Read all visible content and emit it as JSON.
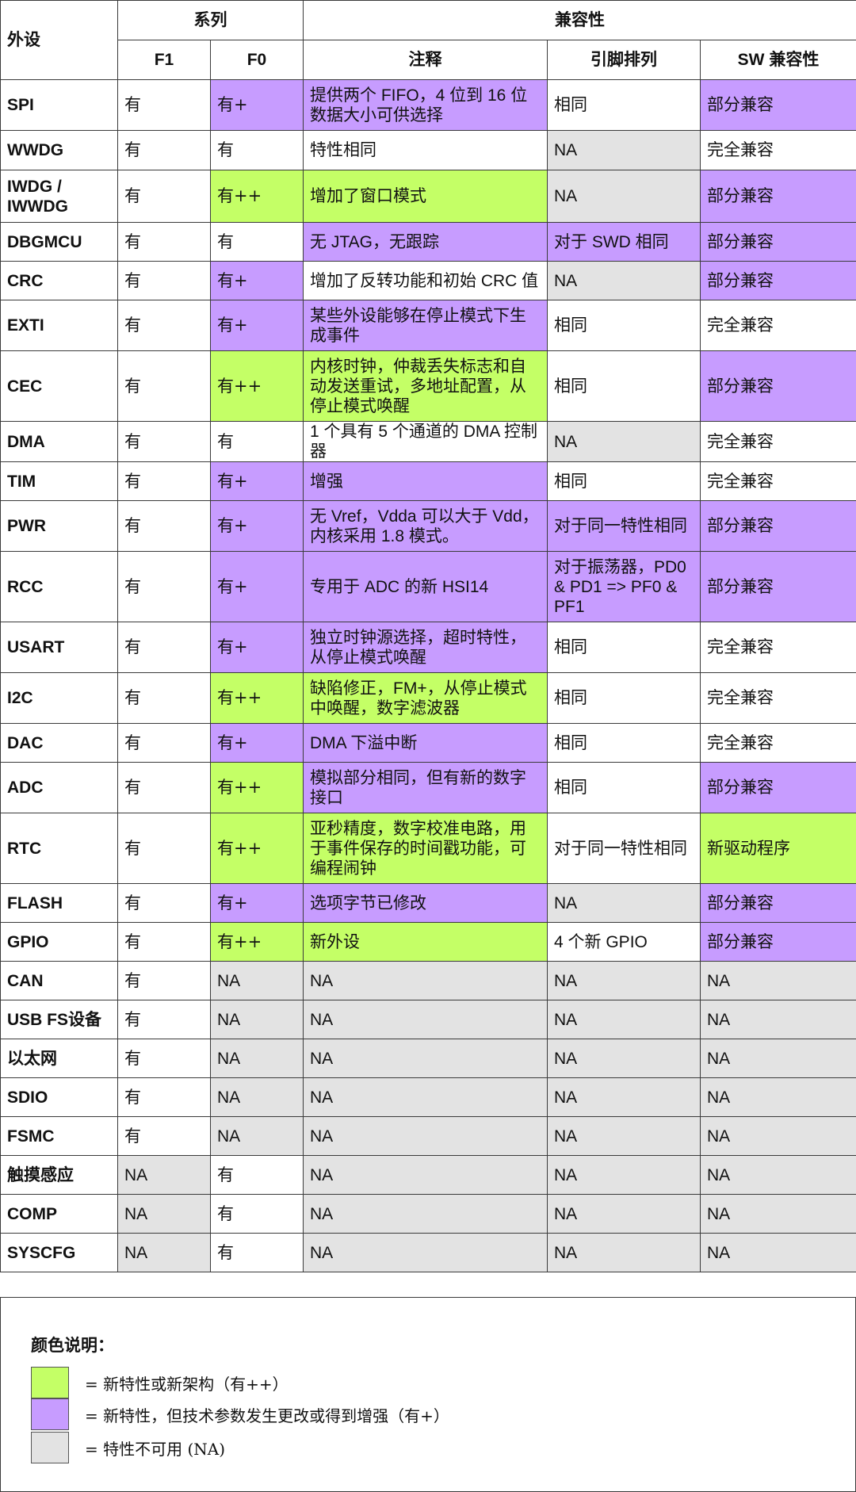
{
  "header": {
    "peripheral": "外设",
    "series": "系列",
    "compat": "兼容性",
    "f1": "F1",
    "f0": "F0",
    "note": "注释",
    "pin": "引脚排列",
    "sw": "SW 兼容性"
  },
  "rows": [
    {
      "name": "SPI",
      "f1": "有",
      "f1c": "w",
      "f0": "有+",
      "f0c": "p",
      "note": "提供两个 FIFO，4 位到 16 位数据大小可供选择",
      "notec": "p",
      "pin": "相同",
      "pinc": "w",
      "sw": "部分兼容",
      "swc": "p"
    },
    {
      "name": "WWDG",
      "f1": "有",
      "f1c": "w",
      "f0": "有",
      "f0c": "w",
      "note": "特性相同",
      "notec": "w",
      "pin": "NA",
      "pinc": "n",
      "sw": "完全兼容",
      "swc": "w"
    },
    {
      "name": "IWDG / IWWDG",
      "f1": "有",
      "f1c": "w",
      "f0": "有++",
      "f0c": "g",
      "note": "增加了窗口模式",
      "notec": "g",
      "pin": "NA",
      "pinc": "n",
      "sw": "部分兼容",
      "swc": "p"
    },
    {
      "name": "DBGMCU",
      "f1": "有",
      "f1c": "w",
      "f0": "有",
      "f0c": "w",
      "note": "无 JTAG，无跟踪",
      "notec": "p",
      "pin": "对于 SWD 相同",
      "pinc": "p",
      "sw": "部分兼容",
      "swc": "p"
    },
    {
      "name": "CRC",
      "f1": "有",
      "f1c": "w",
      "f0": "有+",
      "f0c": "p",
      "note": "增加了反转功能和初始 CRC 值",
      "notec": "w",
      "pin": "NA",
      "pinc": "n",
      "sw": "部分兼容",
      "swc": "p"
    },
    {
      "name": "EXTI",
      "f1": "有",
      "f1c": "w",
      "f0": "有+",
      "f0c": "p",
      "note": "某些外设能够在停止模式下生成事件",
      "notec": "p",
      "pin": "相同",
      "pinc": "w",
      "sw": "完全兼容",
      "swc": "w"
    },
    {
      "name": "CEC",
      "f1": "有",
      "f1c": "w",
      "f0": "有++",
      "f0c": "g",
      "note": "内核时钟，仲裁丢失标志和自动发送重试，多地址配置，从停止模式唤醒",
      "notec": "g",
      "pin": "相同",
      "pinc": "w",
      "sw": "部分兼容",
      "swc": "p"
    },
    {
      "name": "DMA",
      "f1": "有",
      "f1c": "w",
      "f0": "有",
      "f0c": "w",
      "note": "1 个具有 5 个通道的 DMA 控制器",
      "notec": "w",
      "pin": "NA",
      "pinc": "n",
      "sw": "完全兼容",
      "swc": "w"
    },
    {
      "name": "TIM",
      "f1": "有",
      "f1c": "w",
      "f0": "有+",
      "f0c": "p",
      "note": "增强",
      "notec": "p",
      "pin": "相同",
      "pinc": "w",
      "sw": "完全兼容",
      "swc": "w"
    },
    {
      "name": "PWR",
      "f1": "有",
      "f1c": "w",
      "f0": "有+",
      "f0c": "p",
      "note": "无 Vref，Vdda 可以大于 Vdd，内核采用 1.8 模式。",
      "notec": "p",
      "pin": "对于同一特性相同",
      "pinc": "p",
      "sw": "部分兼容",
      "swc": "p"
    },
    {
      "name": "RCC",
      "f1": "有",
      "f1c": "w",
      "f0": "有+",
      "f0c": "p",
      "note": "专用于 ADC 的新 HSI14",
      "notec": "p",
      "pin": "对于振荡器，PD0 & PD1 => PF0 & PF1",
      "pinc": "p",
      "sw": "部分兼容",
      "swc": "p"
    },
    {
      "name": "USART",
      "f1": "有",
      "f1c": "w",
      "f0": "有+",
      "f0c": "p",
      "note": "独立时钟源选择，超时特性，从停止模式唤醒",
      "notec": "p",
      "pin": "相同",
      "pinc": "w",
      "sw": "完全兼容",
      "swc": "w"
    },
    {
      "name": "I2C",
      "f1": "有",
      "f1c": "w",
      "f0": "有++",
      "f0c": "g",
      "note": "缺陷修正，FM+，从停止模式中唤醒，数字滤波器",
      "notec": "g",
      "pin": "相同",
      "pinc": "w",
      "sw": "完全兼容",
      "swc": "w"
    },
    {
      "name": "DAC",
      "f1": "有",
      "f1c": "w",
      "f0": "有+",
      "f0c": "p",
      "note": "DMA 下溢中断",
      "notec": "p",
      "pin": "相同",
      "pinc": "w",
      "sw": "完全兼容",
      "swc": "w"
    },
    {
      "name": "ADC",
      "f1": "有",
      "f1c": "w",
      "f0": "有++",
      "f0c": "g",
      "note": "模拟部分相同，但有新的数字接口",
      "notec": "p",
      "pin": "相同",
      "pinc": "w",
      "sw": "部分兼容",
      "swc": "p"
    },
    {
      "name": "RTC",
      "f1": "有",
      "f1c": "w",
      "f0": "有++",
      "f0c": "g",
      "note": "亚秒精度，数字校准电路，用于事件保存的时间戳功能，可编程闹钟",
      "notec": "g",
      "pin": "对于同一特性相同",
      "pinc": "w",
      "sw": "新驱动程序",
      "swc": "g"
    },
    {
      "name": "FLASH",
      "f1": "有",
      "f1c": "w",
      "f0": "有+",
      "f0c": "p",
      "note": "选项字节已修改",
      "notec": "p",
      "pin": "NA",
      "pinc": "n",
      "sw": "部分兼容",
      "swc": "p"
    },
    {
      "name": "GPIO",
      "f1": "有",
      "f1c": "w",
      "f0": "有++",
      "f0c": "g",
      "note": "新外设",
      "notec": "g",
      "pin": "4 个新 GPIO",
      "pinc": "w",
      "sw": "部分兼容",
      "swc": "p"
    },
    {
      "name": "CAN",
      "f1": "有",
      "f1c": "w",
      "f0": "NA",
      "f0c": "n",
      "note": "NA",
      "notec": "n",
      "pin": "NA",
      "pinc": "n",
      "sw": "NA",
      "swc": "n"
    },
    {
      "name": "USB FS设备",
      "f1": "有",
      "f1c": "w",
      "f0": "NA",
      "f0c": "n",
      "note": "NA",
      "notec": "n",
      "pin": "NA",
      "pinc": "n",
      "sw": "NA",
      "swc": "n"
    },
    {
      "name": "以太网",
      "f1": "有",
      "f1c": "w",
      "f0": "NA",
      "f0c": "n",
      "note": "NA",
      "notec": "n",
      "pin": "NA",
      "pinc": "n",
      "sw": "NA",
      "swc": "n"
    },
    {
      "name": "SDIO",
      "f1": "有",
      "f1c": "w",
      "f0": "NA",
      "f0c": "n",
      "note": "NA",
      "notec": "n",
      "pin": "NA",
      "pinc": "n",
      "sw": "NA",
      "swc": "n"
    },
    {
      "name": "FSMC",
      "f1": "有",
      "f1c": "w",
      "f0": "NA",
      "f0c": "n",
      "note": "NA",
      "notec": "n",
      "pin": "NA",
      "pinc": "n",
      "sw": "NA",
      "swc": "n"
    },
    {
      "name": "触摸感应",
      "f1": "NA",
      "f1c": "n",
      "f0": "有",
      "f0c": "w",
      "note": "NA",
      "notec": "n",
      "pin": "NA",
      "pinc": "n",
      "sw": "NA",
      "swc": "n"
    },
    {
      "name": "COMP",
      "f1": "NA",
      "f1c": "n",
      "f0": "有",
      "f0c": "w",
      "note": "NA",
      "notec": "n",
      "pin": "NA",
      "pinc": "n",
      "sw": "NA",
      "swc": "n"
    },
    {
      "name": "SYSCFG",
      "f1": "NA",
      "f1c": "n",
      "f0": "有",
      "f0c": "w",
      "note": "NA",
      "notec": "n",
      "pin": "NA",
      "pinc": "n",
      "sw": "NA",
      "swc": "n"
    }
  ],
  "legend": {
    "title": "颜色说明：",
    "items": [
      {
        "color": "#c4ff66",
        "text": "= 新特性或新架构（有++）"
      },
      {
        "color": "#c79cff",
        "text": "= 新特性，但技术参数发生更改或得到增强（有+）"
      },
      {
        "color": "#e3e3e3",
        "text": "= 特性不可用 (NA)"
      }
    ]
  }
}
